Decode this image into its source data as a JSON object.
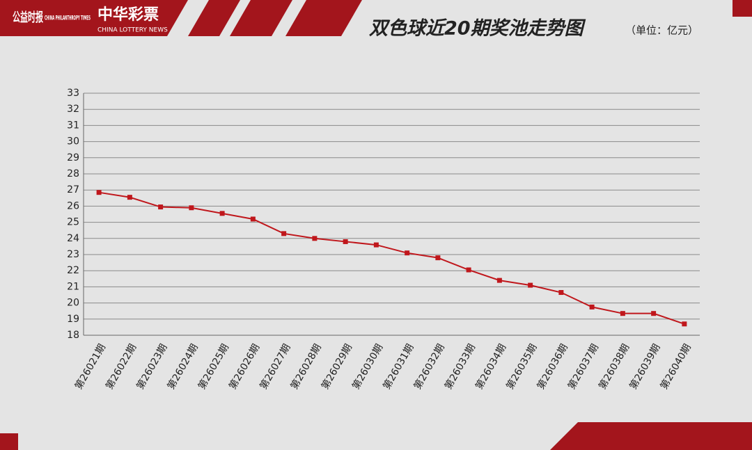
{
  "logos": {
    "left_cn": "公益时报",
    "left_en": "CHINA PHILANTHROPY TIMES",
    "right_cn": "中华彩票",
    "right_en": "CHINA LOTTERY NEWS"
  },
  "chart_data": {
    "type": "line",
    "title": "双色球近20期奖池走势图",
    "subtitle": "（单位：亿元）",
    "categories": [
      "第26021期",
      "第26022期",
      "第26023期",
      "第26024期",
      "第26025期",
      "第26026期",
      "第26027期",
      "第26028期",
      "第26029期",
      "第26030期",
      "第26031期",
      "第26032期",
      "第26033期",
      "第26034期",
      "第26035期",
      "第26036期",
      "第26037期",
      "第26038期",
      "第26039期",
      "第26040期"
    ],
    "values": [
      26.85,
      26.55,
      25.95,
      25.9,
      25.55,
      25.2,
      24.3,
      24.0,
      23.8,
      23.6,
      23.1,
      22.8,
      22.05,
      21.4,
      21.1,
      20.65,
      19.75,
      19.35,
      19.35,
      18.7
    ],
    "color": "#c0171c",
    "ylim": [
      18,
      33
    ],
    "yticks": [
      18,
      19,
      20,
      21,
      22,
      23,
      24,
      25,
      26,
      27,
      28,
      29,
      30,
      31,
      32,
      33
    ],
    "grid": true
  }
}
